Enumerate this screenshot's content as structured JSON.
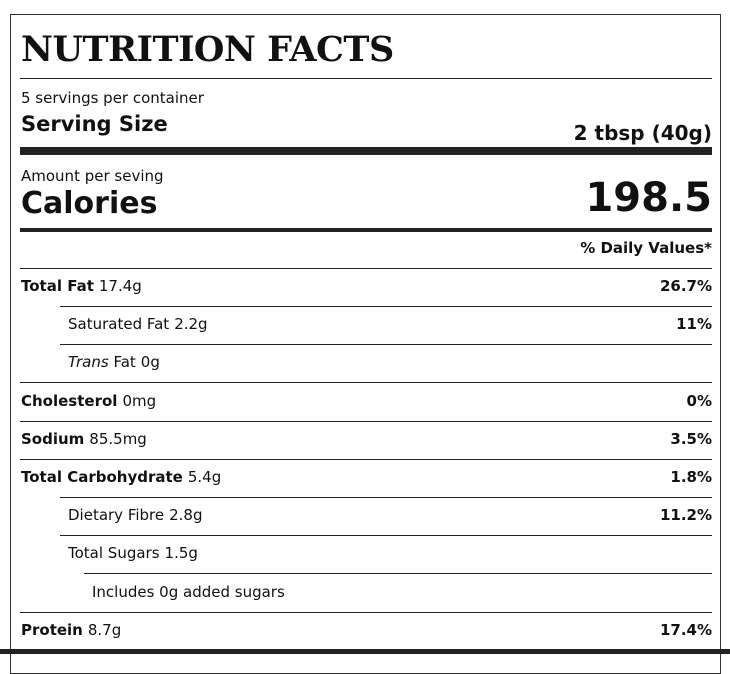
{
  "header": {
    "title": "NUTRITION FACTS",
    "servings": "5 servings per container",
    "serving_size_label": "Serving Size",
    "serving_size_value": "2 tbsp (40g)"
  },
  "calories": {
    "amount_label": "Amount per seving",
    "label": "Calories",
    "value": "198.5"
  },
  "daily_values_header": "% Daily Values*",
  "rows": [
    {
      "label": "Total Fat",
      "amount": "17.4g",
      "daily_value": "26.7%"
    },
    {
      "label": "Saturated Fat",
      "amount": "2.2g",
      "daily_value": "11%"
    },
    {
      "label_italic": "Trans",
      "label": "Fat",
      "amount": "0g"
    },
    {
      "label": "Cholesterol",
      "amount": "0mg",
      "daily_value": "0%"
    },
    {
      "label": "Sodium",
      "amount": "85.5mg",
      "daily_value": "3.5%"
    },
    {
      "label": "Total Carbohydrate",
      "amount": "5.4g",
      "daily_value": "1.8%"
    },
    {
      "label": "Dietary Fibre",
      "amount": "2.8g",
      "daily_value": "11.2%"
    },
    {
      "label": "Total Sugars",
      "amount": "1.5g"
    },
    {
      "text": "Includes 0g added sugars"
    },
    {
      "label": "Protein",
      "amount": "8.7g",
      "daily_value": "17.4%"
    }
  ]
}
